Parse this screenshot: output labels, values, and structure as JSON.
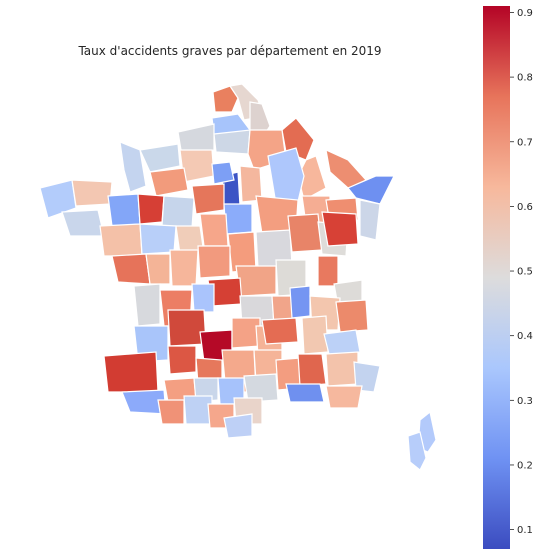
{
  "title": "Taux d'accidents graves par département en 2019",
  "colormap": {
    "name": "coolwarm",
    "stops": [
      "#3b4cc0",
      "#6f92f3",
      "#aac7fd",
      "#dddcdc",
      "#f7b89c",
      "#e7745b",
      "#b40426"
    ]
  },
  "colorbar": {
    "min": 0.07,
    "max": 0.91,
    "ticks": [
      "0.1",
      "0.2",
      "0.3",
      "0.4",
      "0.5",
      "0.6",
      "0.7",
      "0.8",
      "0.9"
    ],
    "tick_values": [
      0.1,
      0.2,
      0.3,
      0.4,
      0.5,
      0.6,
      0.7,
      0.8,
      0.9
    ]
  }
}
